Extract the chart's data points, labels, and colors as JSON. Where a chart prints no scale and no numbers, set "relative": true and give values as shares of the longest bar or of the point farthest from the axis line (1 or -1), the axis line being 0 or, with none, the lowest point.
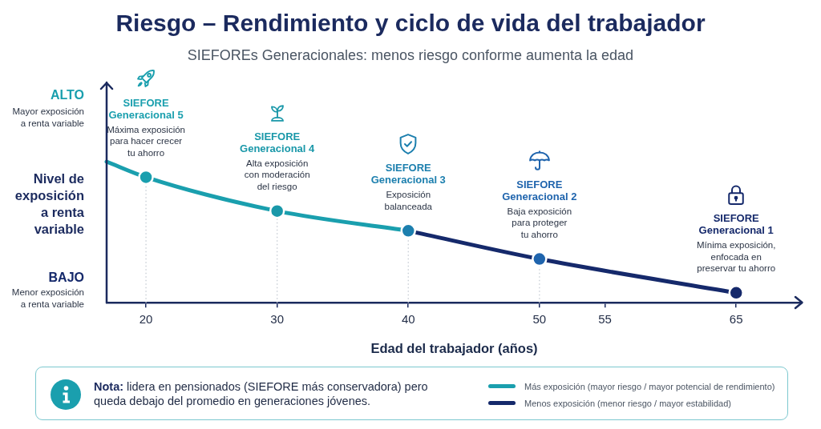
{
  "chart_data": {
    "type": "line",
    "title": "Riesgo – Rendimiento y ciclo de vida del trabajador",
    "subtitle": "SIEFOREs Generacionales: menos riesgo conforme aumenta la edad",
    "xlabel": "Edad del trabajador (años)",
    "ylabel": "Nivel de exposición a renta variable",
    "relative": true,
    "xlim": [
      17,
      70
    ],
    "xticks": [
      20,
      30,
      40,
      50,
      55,
      65
    ],
    "marker": "circle",
    "legend": "bottom right",
    "series": [
      {
        "name": "Más exposición (mayor riesgo / mayor potencial de rendimiento)",
        "color": "#1a9fae",
        "marker": "none",
        "x": [
          17,
          20,
          30,
          40
        ],
        "values": [
          1,
          0.89,
          0.65,
          0.51
        ]
      },
      {
        "name": "Menos exposición (menor riesgo / mayor estabilidad)",
        "color": "#15296b",
        "marker": "none",
        "x": [
          40,
          50,
          65
        ],
        "values": [
          0.51,
          0.31,
          0.07
        ]
      },
      {
        "type": "scatter",
        "x": [
          20,
          30,
          40,
          50,
          65
        ],
        "values": [
          0.89,
          0.65,
          0.51,
          0.31,
          0.07
        ],
        "colors": [
          "#1a9fae",
          "#1a98a9",
          "#1c7fae",
          "#1f64ad",
          "#15296b"
        ]
      }
    ],
    "ref_lines": [
      {
        "axis": "x",
        "value": 20,
        "line_style": "dotted",
        "color": "#c5cbd3"
      },
      {
        "axis": "x",
        "value": 30,
        "line_style": "dotted",
        "color": "#c5cbd3"
      },
      {
        "axis": "x",
        "value": 40,
        "line_style": "dotted",
        "color": "#c5cbd3"
      },
      {
        "axis": "x",
        "value": 50,
        "line_style": "dotted",
        "color": "#c5cbd3"
      }
    ],
    "annotations": [
      "ALTO",
      "Mayor exposición a renta variable",
      "BAJO",
      "Menor exposición a renta variable",
      "Nota: lidera en pensionados (SIEFORE más conservadora) pero queda debajo del promedio en generaciones jóvenes.",
      "SIEFORE Generacional 5",
      "SIEFORE Generacional 4",
      "SIEFORE Generacional 3",
      "SIEFORE Generacional 2",
      "SIEFORE Generacional 1",
      {
        "text": "Máxima exposición para hacer crecer tu ahorro",
        "x": 20,
        "y": 0.89
      },
      {
        "text": "Alta exposición con moderación del riesgo",
        "x": 30,
        "y": 0.65
      },
      {
        "text": "Exposición balanceada",
        "x": 40,
        "y": 0.51
      },
      {
        "text": "Baja exposición para proteger tu ahorro",
        "x": 50,
        "y": 0.31
      },
      {
        "text": "Mínima exposición, enfocada en preservar tu ahorro",
        "x": 65,
        "y": 0.07
      }
    ]
  }
}
